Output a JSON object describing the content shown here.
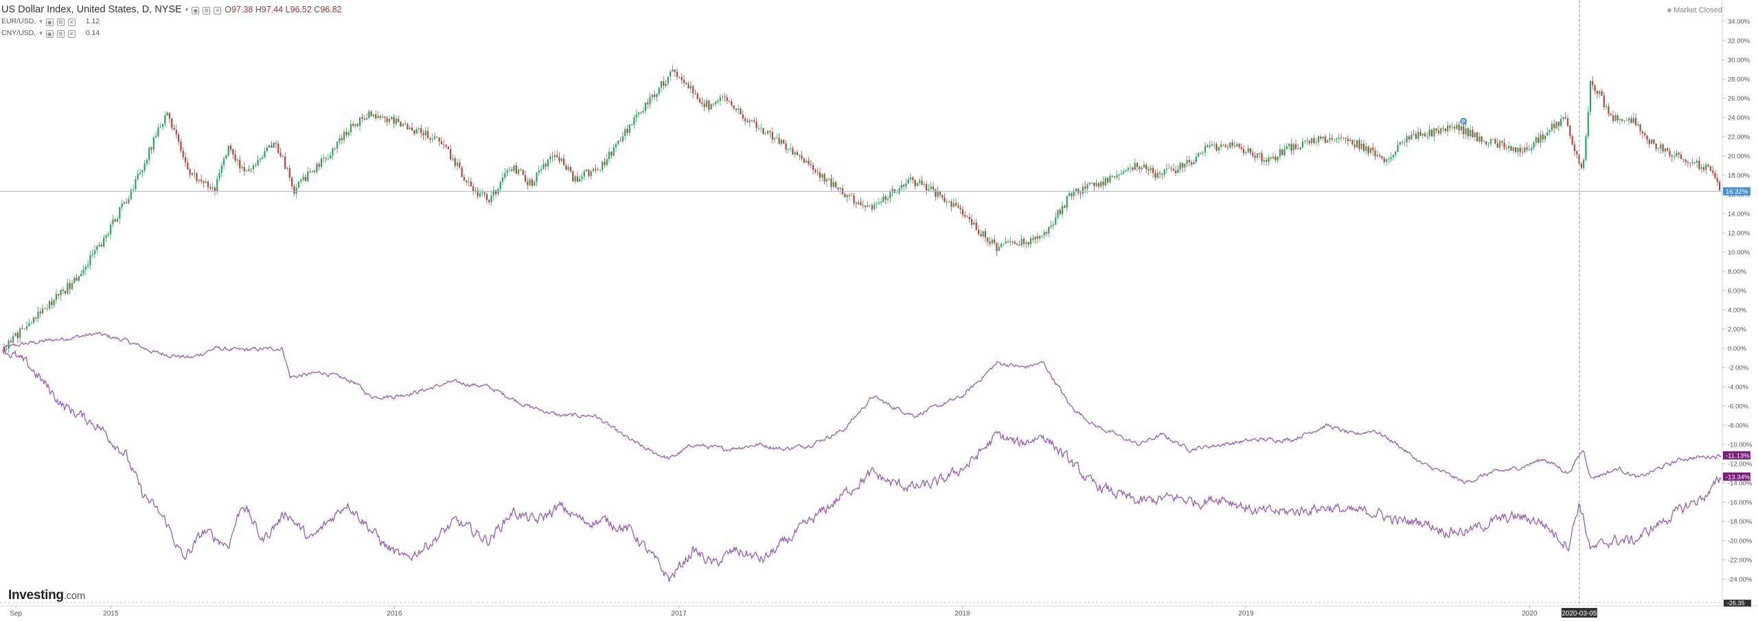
{
  "legend": {
    "main": {
      "name": "US Dollar Index, United States, D, NYSE",
      "open_label": "O",
      "open": "97.38",
      "high_label": "H",
      "high": "97.44",
      "low_label": "L",
      "low": "96.52",
      "close_label": "C",
      "close": "96.82"
    },
    "compare_1": {
      "name": "EUR/USD,",
      "value": "1.12"
    },
    "compare_2": {
      "name": "CNY/USD,",
      "value": "0.14"
    }
  },
  "market_status": "Market Closed",
  "logo": {
    "text": "Investing",
    "suffix": ".com"
  },
  "colors": {
    "up": "#26a65b",
    "down": "#b5433a",
    "compare": "#9b59b6",
    "price_label_bg": "#4a90d9",
    "compare_label_bg": "#7b1f7e",
    "axis_text": "#555555"
  },
  "chart_data": {
    "type": "line",
    "title": "",
    "ylabel": "",
    "xlabel": "",
    "y_unit": "%",
    "ylim": [
      -26.35,
      35.0
    ],
    "y_ticks": [
      "34.00%",
      "32.00%",
      "30.00%",
      "28.00%",
      "26.00%",
      "24.00%",
      "22.00%",
      "20.00%",
      "18.00%",
      "16.00%",
      "14.00%",
      "12.00%",
      "10.00%",
      "8.00%",
      "6.00%",
      "4.00%",
      "2.00%",
      "0.00%",
      "-2.00%",
      "-4.00%",
      "-6.00%",
      "-8.00%",
      "-10.00%",
      "-12.00%",
      "-14.00%",
      "-16.00%",
      "-18.00%",
      "-20.00%",
      "-22.00%",
      "-24.00%"
    ],
    "y_tick_values": [
      34,
      32,
      30,
      28,
      26,
      24,
      22,
      20,
      18,
      16,
      14,
      12,
      10,
      8,
      6,
      4,
      2,
      0,
      -2,
      -4,
      -6,
      -8,
      -10,
      -12,
      -14,
      -16,
      -18,
      -20,
      -22,
      -24
    ],
    "x_range": [
      "2014-08-15",
      "2020-09-05"
    ],
    "x_ticks": [
      {
        "label": "Sep",
        "date": "2014-09-01"
      },
      {
        "label": "2015",
        "date": "2015-01-01"
      },
      {
        "label": "2016",
        "date": "2016-01-01"
      },
      {
        "label": "2017",
        "date": "2017-01-01"
      },
      {
        "label": "2018",
        "date": "2018-01-01"
      },
      {
        "label": "2019",
        "date": "2019-01-01"
      },
      {
        "label": "2020",
        "date": "2020-01-01"
      }
    ],
    "crosshair": {
      "date": "2020-03-05",
      "label": "2020-03-05"
    },
    "bottom_label": "-26.35",
    "series": [
      {
        "name": "US Dollar Index",
        "style": "candlestick",
        "last_label": "16.32%",
        "points": [
          [
            "2014-08-15",
            0
          ],
          [
            "2014-10-01",
            3.5
          ],
          [
            "2014-11-15",
            7
          ],
          [
            "2014-12-20",
            11
          ],
          [
            "2015-02-01",
            17
          ],
          [
            "2015-03-13",
            24.5
          ],
          [
            "2015-04-15",
            18
          ],
          [
            "2015-05-15",
            16.5
          ],
          [
            "2015-06-01",
            21
          ],
          [
            "2015-06-25",
            18
          ],
          [
            "2015-08-01",
            21.5
          ],
          [
            "2015-08-25",
            16.5
          ],
          [
            "2015-10-01",
            19.5
          ],
          [
            "2015-11-05",
            23
          ],
          [
            "2015-12-02",
            24.5
          ],
          [
            "2016-01-20",
            23
          ],
          [
            "2016-03-01",
            21.5
          ],
          [
            "2016-04-10",
            16.5
          ],
          [
            "2016-05-03",
            15.5
          ],
          [
            "2016-06-01",
            19
          ],
          [
            "2016-06-25",
            17
          ],
          [
            "2016-07-25",
            20.5
          ],
          [
            "2016-08-20",
            17.5
          ],
          [
            "2016-09-25",
            19
          ],
          [
            "2016-10-20",
            22
          ],
          [
            "2016-12-25",
            29
          ],
          [
            "2017-01-15",
            27
          ],
          [
            "2017-02-10",
            25
          ],
          [
            "2017-02-28",
            26.5
          ],
          [
            "2017-03-20",
            24.5
          ],
          [
            "2017-04-20",
            22.5
          ],
          [
            "2017-05-20",
            21
          ],
          [
            "2017-06-20",
            19
          ],
          [
            "2017-08-01",
            16
          ],
          [
            "2017-09-08",
            14.5
          ],
          [
            "2017-10-01",
            16
          ],
          [
            "2017-10-25",
            17.5
          ],
          [
            "2017-11-20",
            16.5
          ],
          [
            "2017-12-20",
            15
          ],
          [
            "2018-01-25",
            12
          ],
          [
            "2018-02-15",
            10.5
          ],
          [
            "2018-03-15",
            11
          ],
          [
            "2018-04-15",
            11.5
          ],
          [
            "2018-05-20",
            16
          ],
          [
            "2018-06-20",
            17
          ],
          [
            "2018-08-15",
            19
          ],
          [
            "2018-09-10",
            18
          ],
          [
            "2018-10-15",
            19
          ],
          [
            "2018-11-15",
            21
          ],
          [
            "2018-12-15",
            21
          ],
          [
            "2019-01-30",
            19.5
          ],
          [
            "2019-03-01",
            21
          ],
          [
            "2019-04-25",
            22
          ],
          [
            "2019-06-01",
            21
          ],
          [
            "2019-06-25",
            19.5
          ],
          [
            "2019-08-01",
            22
          ],
          [
            "2019-10-01",
            23
          ],
          [
            "2019-11-05",
            21.5
          ],
          [
            "2019-12-25",
            20.5
          ],
          [
            "2020-02-15",
            24
          ],
          [
            "2020-03-09",
            18
          ],
          [
            "2020-03-20",
            28
          ],
          [
            "2020-04-15",
            24
          ],
          [
            "2020-05-15",
            23.5
          ],
          [
            "2020-06-10",
            21
          ],
          [
            "2020-07-15",
            20
          ],
          [
            "2020-08-20",
            18.5
          ],
          [
            "2020-09-04",
            16.32
          ]
        ]
      },
      {
        "name": "EUR/USD",
        "style": "line",
        "last_label": "-11.13%",
        "points": [
          [
            "2014-08-15",
            0
          ],
          [
            "2014-09-15",
            0.5
          ],
          [
            "2014-11-01",
            1
          ],
          [
            "2014-12-15",
            1.5
          ],
          [
            "2015-01-20",
            0.8
          ],
          [
            "2015-03-01",
            -0.5
          ],
          [
            "2015-04-15",
            -1
          ],
          [
            "2015-05-15",
            0
          ],
          [
            "2015-06-15",
            -0.2
          ],
          [
            "2015-08-10",
            0
          ],
          [
            "2015-08-20",
            -3
          ],
          [
            "2015-10-01",
            -2.5
          ],
          [
            "2015-11-10",
            -3.5
          ],
          [
            "2015-12-01",
            -5
          ],
          [
            "2016-01-01",
            -5
          ],
          [
            "2016-02-01",
            -4.5
          ],
          [
            "2016-03-15",
            -3.5
          ],
          [
            "2016-05-01",
            -4
          ],
          [
            "2016-06-20",
            -6
          ],
          [
            "2016-08-01",
            -7
          ],
          [
            "2016-09-15",
            -7
          ],
          [
            "2016-10-20",
            -9
          ],
          [
            "2016-11-20",
            -10.5
          ],
          [
            "2016-12-20",
            -11.5
          ],
          [
            "2017-01-20",
            -10
          ],
          [
            "2017-03-01",
            -10.5
          ],
          [
            "2017-04-15",
            -10
          ],
          [
            "2017-05-15",
            -10.5
          ],
          [
            "2017-06-20",
            -10
          ],
          [
            "2017-08-01",
            -8.5
          ],
          [
            "2017-09-08",
            -5
          ],
          [
            "2017-10-01",
            -6
          ],
          [
            "2017-11-01",
            -7
          ],
          [
            "2017-12-01",
            -6
          ],
          [
            "2018-01-01",
            -5
          ],
          [
            "2018-02-15",
            -1.5
          ],
          [
            "2018-03-20",
            -2
          ],
          [
            "2018-04-15",
            -1.5
          ],
          [
            "2018-05-20",
            -6
          ],
          [
            "2018-06-20",
            -8
          ],
          [
            "2018-08-15",
            -10
          ],
          [
            "2018-09-15",
            -9
          ],
          [
            "2018-10-20",
            -10.5
          ],
          [
            "2018-12-01",
            -10
          ],
          [
            "2019-01-15",
            -9.5
          ],
          [
            "2019-03-01",
            -9.5
          ],
          [
            "2019-04-15",
            -8
          ],
          [
            "2019-05-20",
            -9
          ],
          [
            "2019-06-15",
            -8.5
          ],
          [
            "2019-07-15",
            -10
          ],
          [
            "2019-08-15",
            -12
          ],
          [
            "2019-09-15",
            -13
          ],
          [
            "2019-10-10",
            -14
          ],
          [
            "2019-11-10",
            -13
          ],
          [
            "2019-12-15",
            -12.5
          ],
          [
            "2020-01-20",
            -11.5
          ],
          [
            "2020-02-20",
            -13
          ],
          [
            "2020-03-10",
            -10.5
          ],
          [
            "2020-03-20",
            -13.5
          ],
          [
            "2020-04-25",
            -12.5
          ],
          [
            "2020-05-20",
            -13.5
          ],
          [
            "2020-06-15",
            -12.5
          ],
          [
            "2020-07-15",
            -11.5
          ],
          [
            "2020-09-04",
            -11.13
          ]
        ]
      },
      {
        "name": "CNY/USD",
        "style": "line",
        "last_label": "-13.34%",
        "points": [
          [
            "2014-08-15",
            0
          ],
          [
            "2014-09-20",
            -2
          ],
          [
            "2014-11-01",
            -6
          ],
          [
            "2014-12-15",
            -8
          ],
          [
            "2015-01-20",
            -11
          ],
          [
            "2015-02-10",
            -15
          ],
          [
            "2015-03-13",
            -18
          ],
          [
            "2015-04-05",
            -22
          ],
          [
            "2015-05-01",
            -19
          ],
          [
            "2015-06-01",
            -20.5
          ],
          [
            "2015-06-20",
            -16
          ],
          [
            "2015-07-15",
            -20
          ],
          [
            "2015-08-15",
            -17
          ],
          [
            "2015-09-15",
            -20
          ],
          [
            "2015-11-01",
            -16
          ],
          [
            "2015-12-20",
            -20.5
          ],
          [
            "2016-01-15",
            -22
          ],
          [
            "2016-02-20",
            -20
          ],
          [
            "2016-03-20",
            -18
          ],
          [
            "2016-05-01",
            -20
          ],
          [
            "2016-06-01",
            -17
          ],
          [
            "2016-07-01",
            -18
          ],
          [
            "2016-08-01",
            -16.5
          ],
          [
            "2016-09-01",
            -18
          ],
          [
            "2016-10-01",
            -18
          ],
          [
            "2016-11-01",
            -19
          ],
          [
            "2016-12-01",
            -22
          ],
          [
            "2016-12-20",
            -24
          ],
          [
            "2017-01-20",
            -21
          ],
          [
            "2017-02-15",
            -22.5
          ],
          [
            "2017-03-15",
            -21
          ],
          [
            "2017-04-20",
            -22
          ],
          [
            "2017-05-20",
            -20
          ],
          [
            "2017-06-20",
            -18
          ],
          [
            "2017-07-20",
            -16
          ],
          [
            "2017-08-20",
            -14
          ],
          [
            "2017-09-08",
            -13
          ],
          [
            "2017-10-01",
            -14
          ],
          [
            "2017-11-01",
            -14.5
          ],
          [
            "2017-12-01",
            -14
          ],
          [
            "2018-01-10",
            -12
          ],
          [
            "2018-02-15",
            -9
          ],
          [
            "2018-03-15",
            -10
          ],
          [
            "2018-04-15",
            -9
          ],
          [
            "2018-05-10",
            -11
          ],
          [
            "2018-06-15",
            -14
          ],
          [
            "2018-07-15",
            -15
          ],
          [
            "2018-08-15",
            -16
          ],
          [
            "2018-10-01",
            -15.5
          ],
          [
            "2018-11-01",
            -16
          ],
          [
            "2018-12-01",
            -15.5
          ],
          [
            "2019-01-15",
            -17
          ],
          [
            "2019-03-01",
            -17
          ],
          [
            "2019-04-15",
            -16.5
          ],
          [
            "2019-05-15",
            -17
          ],
          [
            "2019-06-15",
            -17
          ],
          [
            "2019-07-15",
            -18
          ],
          [
            "2019-08-15",
            -18
          ],
          [
            "2019-09-15",
            -19
          ],
          [
            "2019-10-15",
            -19
          ],
          [
            "2019-11-15",
            -18
          ],
          [
            "2019-12-15",
            -17.5
          ],
          [
            "2020-01-15",
            -18
          ],
          [
            "2020-02-20",
            -20.5
          ],
          [
            "2020-03-05",
            -16
          ],
          [
            "2020-03-20",
            -21
          ],
          [
            "2020-04-15",
            -20
          ],
          [
            "2020-05-15",
            -20
          ],
          [
            "2020-06-20",
            -18
          ],
          [
            "2020-07-20",
            -16.5
          ],
          [
            "2020-08-20",
            -15
          ],
          [
            "2020-09-04",
            -13.34
          ]
        ]
      }
    ]
  }
}
